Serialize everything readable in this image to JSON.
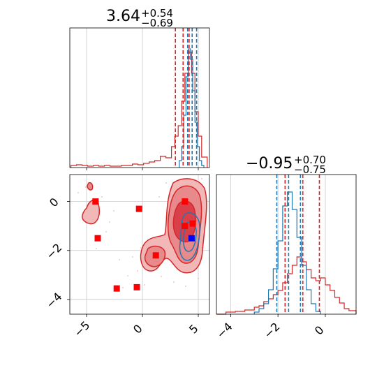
{
  "colors": {
    "red": "#d62728",
    "blue": "#1f77b4",
    "marker_blue": "#0000ff",
    "grid": "#c8c8c8"
  },
  "chart_data": [
    {
      "type": "histogram",
      "panel": "top-left marginal (parameter 1)",
      "title": {
        "value": "3.64",
        "upper": "+0.54",
        "lower": "−0.69"
      },
      "xlim": [
        -6.5,
        6.0
      ],
      "grid": true,
      "series": [
        {
          "color": "red",
          "bins": [
            -6.4,
            -5.9,
            -5.4,
            -4.9,
            -4.4,
            -3.9,
            -3.4,
            -2.9,
            -2.4,
            -1.9,
            -1.4,
            -0.9,
            -0.4,
            0.1,
            0.6,
            1.1,
            1.6,
            2.1,
            2.6,
            2.9,
            3.2,
            3.5,
            3.8,
            4.1,
            4.4,
            4.7,
            5.0,
            5.3,
            5.8
          ],
          "values": [
            0.3,
            0.4,
            0.3,
            0.2,
            0.3,
            0.2,
            0.3,
            0.2,
            0.2,
            0.3,
            0.3,
            0.5,
            0.4,
            0.6,
            0.8,
            1.0,
            1.6,
            1.4,
            3.0,
            4.5,
            6.0,
            9.5,
            13.5,
            16.5,
            13.5,
            8.0,
            4.5,
            1.5
          ]
        },
        {
          "color": "blue",
          "bins": [
            3.3,
            3.5,
            3.7,
            3.9,
            4.1,
            4.3,
            4.5,
            4.7,
            4.9,
            5.1,
            5.3,
            5.5
          ],
          "values": [
            1.0,
            3.0,
            7.5,
            13.0,
            17.0,
            15.5,
            11.0,
            6.5,
            3.0,
            1.0,
            0.3
          ]
        }
      ],
      "quantile_lines": [
        {
          "color": "red",
          "x": [
            2.95,
            3.64,
            4.18
          ]
        },
        {
          "color": "blue",
          "x": [
            4.05,
            4.45,
            4.85
          ]
        }
      ]
    },
    {
      "type": "contour",
      "panel": "bottom-left 2D (parameter 1 vs parameter 2)",
      "xlim": [
        -6.5,
        6.0
      ],
      "ylim": [
        -4.6,
        1.1
      ],
      "grid": true,
      "x_ticks": [
        "−5",
        "0",
        "5"
      ],
      "y_ticks": [
        "0",
        "−2",
        "−4"
      ],
      "red_markers": [
        [
          -4.2,
          0.0
        ],
        [
          -4.0,
          -1.5
        ],
        [
          -0.3,
          -0.3
        ],
        [
          1.2,
          -2.2
        ],
        [
          -2.3,
          -3.55
        ],
        [
          -0.5,
          -3.5
        ],
        [
          3.8,
          0.0
        ],
        [
          3.8,
          -1.0
        ],
        [
          4.5,
          -0.9
        ]
      ],
      "blue_markers": [
        [
          4.4,
          -1.5
        ]
      ]
    },
    {
      "type": "histogram",
      "panel": "bottom-right marginal (parameter 2)",
      "title": {
        "value": "−0.95",
        "upper": "+0.70",
        "lower": "−0.75"
      },
      "xlim": [
        -4.6,
        1.3
      ],
      "grid": true,
      "x_ticks": [
        "−4",
        "−2",
        "0"
      ],
      "series": [
        {
          "color": "red",
          "bins": [
            -4.6,
            -4.2,
            -3.8,
            -3.4,
            -3.0,
            -2.8,
            -2.6,
            -2.4,
            -2.2,
            -2.0,
            -1.8,
            -1.6,
            -1.4,
            -1.2,
            -1.0,
            -0.8,
            -0.6,
            -0.4,
            -0.2,
            0.0,
            0.2,
            0.4,
            0.6,
            0.8,
            1.0,
            1.3
          ],
          "values": [
            0.0,
            0.3,
            0.4,
            0.6,
            1.0,
            1.2,
            1.8,
            2.2,
            2.8,
            3.4,
            4.5,
            5.8,
            7.0,
            8.2,
            7.5,
            6.4,
            5.2,
            4.8,
            5.2,
            4.2,
            3.4,
            2.4,
            1.6,
            0.8,
            0.5
          ]
        },
        {
          "color": "blue",
          "bins": [
            -3.0,
            -2.8,
            -2.6,
            -2.4,
            -2.2,
            -2.0,
            -1.8,
            -1.6,
            -1.4,
            -1.2,
            -1.0,
            -0.8,
            -0.6,
            -0.4,
            -0.2
          ],
          "values": [
            0.3,
            0.8,
            1.5,
            3.5,
            6.5,
            10.5,
            15.5,
            17.5,
            15.0,
            11.0,
            7.0,
            3.5,
            1.5,
            0.4
          ]
        }
      ],
      "quantile_lines": [
        {
          "color": "red",
          "x": [
            -1.7,
            -0.95,
            -0.25
          ]
        },
        {
          "color": "blue",
          "x": [
            -2.05,
            -1.55,
            -1.05
          ]
        }
      ]
    }
  ]
}
